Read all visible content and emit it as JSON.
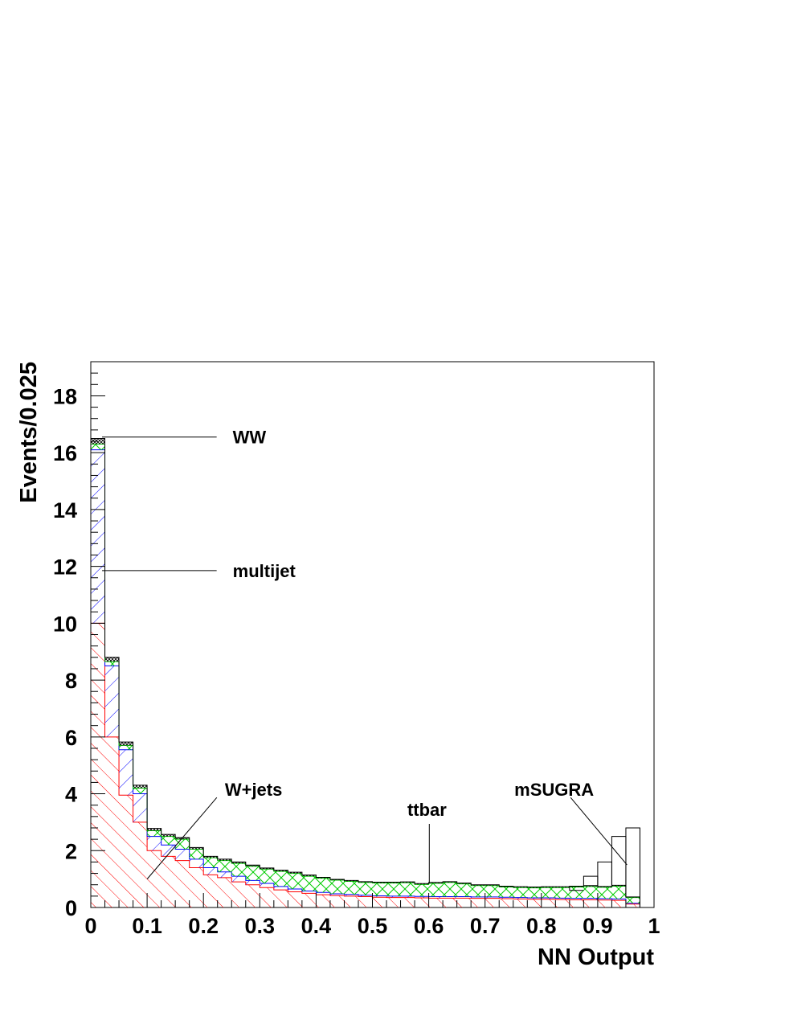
{
  "chart_data": {
    "type": "bar",
    "stacked": true,
    "histogram": true,
    "xlabel": "NN Output",
    "ylabel": "Events/0.025",
    "xlim": [
      0,
      1
    ],
    "ylim": [
      0,
      19.2
    ],
    "xticks": [
      "0",
      "0.1",
      "0.2",
      "0.3",
      "0.4",
      "0.5",
      "0.6",
      "0.7",
      "0.8",
      "0.9",
      "1"
    ],
    "yticks": [
      "0",
      "2",
      "4",
      "6",
      "8",
      "10",
      "12",
      "14",
      "16",
      "18"
    ],
    "bin_width": 0.025,
    "bin_edges_start": 0,
    "series": [
      {
        "name": "W+jets",
        "color": "#ff0000",
        "pattern": "hatch-back",
        "values": [
          10.0,
          6.0,
          3.95,
          3.0,
          2.0,
          1.8,
          1.65,
          1.4,
          1.15,
          1.05,
          0.9,
          0.8,
          0.7,
          0.62,
          0.55,
          0.5,
          0.45,
          0.42,
          0.4,
          0.38,
          0.36,
          0.35,
          0.35,
          0.34,
          0.33,
          0.33,
          0.33,
          0.32,
          0.32,
          0.31,
          0.3,
          0.29,
          0.29,
          0.28,
          0.27,
          0.27,
          0.26,
          0.25,
          0.12,
          0.0
        ]
      },
      {
        "name": "multijet",
        "color": "#0000ff",
        "pattern": "hatch-fwd",
        "values": [
          6.1,
          2.5,
          1.6,
          1.0,
          0.5,
          0.4,
          0.4,
          0.3,
          0.25,
          0.2,
          0.2,
          0.15,
          0.15,
          0.12,
          0.1,
          0.08,
          0.08,
          0.06,
          0.06,
          0.05,
          0.05,
          0.05,
          0.05,
          0.05,
          0.05,
          0.05,
          0.05,
          0.05,
          0.05,
          0.05,
          0.05,
          0.05,
          0.05,
          0.05,
          0.05,
          0.05,
          0.05,
          0.05,
          0.03,
          0.0
        ]
      },
      {
        "name": "ttbar",
        "color": "#00cc00",
        "pattern": "crosshatch",
        "values": [
          0.2,
          0.15,
          0.15,
          0.2,
          0.2,
          0.3,
          0.35,
          0.35,
          0.35,
          0.4,
          0.45,
          0.5,
          0.5,
          0.53,
          0.55,
          0.52,
          0.5,
          0.48,
          0.46,
          0.45,
          0.45,
          0.46,
          0.47,
          0.42,
          0.47,
          0.5,
          0.45,
          0.4,
          0.4,
          0.36,
          0.35,
          0.35,
          0.36,
          0.37,
          0.4,
          0.42,
          0.4,
          0.45,
          0.2,
          0.0
        ]
      },
      {
        "name": "WW",
        "color": "#000000",
        "pattern": "dense-cross",
        "values": [
          0.2,
          0.15,
          0.12,
          0.1,
          0.08,
          0.07,
          0.06,
          0.06,
          0.05,
          0.05,
          0.05,
          0.04,
          0.04,
          0.04,
          0.04,
          0.04,
          0.03,
          0.03,
          0.03,
          0.03,
          0.03,
          0.03,
          0.03,
          0.03,
          0.03,
          0.03,
          0.03,
          0.03,
          0.03,
          0.03,
          0.03,
          0.03,
          0.03,
          0.03,
          0.03,
          0.03,
          0.03,
          0.03,
          0.02,
          0.0
        ]
      }
    ],
    "overlay": {
      "name": "mSUGRA",
      "color": "#000000",
      "values": [
        0.0,
        0.0,
        0.0,
        0.0,
        0.0,
        0.0,
        0.0,
        0.0,
        0.0,
        0.0,
        0.0,
        0.0,
        0.0,
        0.0,
        0.0,
        0.0,
        0.0,
        0.0,
        0.0,
        0.0,
        0.0,
        0.0,
        0.0,
        0.0,
        0.0,
        0.0,
        0.0,
        0.0,
        0.0,
        0.0,
        0.0,
        0.0,
        0.0,
        0.0,
        0.6,
        1.1,
        1.6,
        2.5,
        2.8,
        0.0
      ]
    },
    "annotations": [
      {
        "text": "WW",
        "x": 0.252,
        "y": 16.55,
        "target_x": 0.02,
        "target_y": 16.55
      },
      {
        "text": "multijet",
        "x": 0.252,
        "y": 11.85,
        "target_x": 0.02,
        "target_y": 11.85
      },
      {
        "text": "W+jets",
        "x": 0.238,
        "y": 4.15,
        "target_x": 0.1,
        "target_y": 1.0
      },
      {
        "text": "ttbar",
        "x": 0.562,
        "y": 3.45,
        "target_x": 0.601,
        "target_y": 0.85
      },
      {
        "text": "mSUGRA",
        "x": 0.752,
        "y": 4.15,
        "target_x": 0.952,
        "target_y": 1.5
      }
    ]
  }
}
